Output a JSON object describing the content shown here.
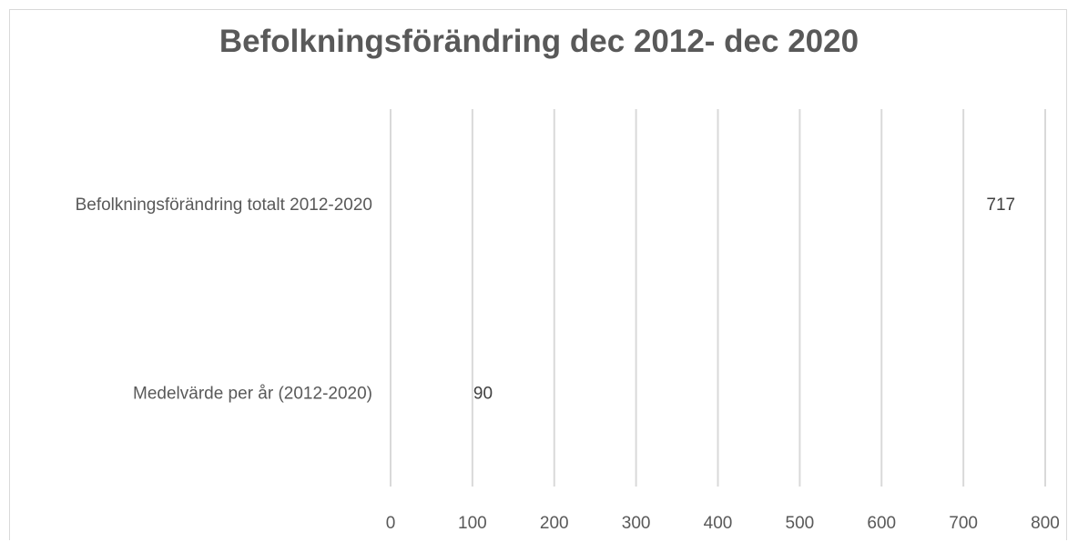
{
  "chart_data": {
    "type": "bar",
    "orientation": "horizontal",
    "title": "Befolkningsförändring dec 2012- dec 2020",
    "categories": [
      "Befolkningsförändring totalt 2012-2020",
      "Medelvärde per år (2012-2020)"
    ],
    "series": [
      {
        "values": [
          717,
          90
        ]
      }
    ],
    "data_labels": [
      "717",
      "90"
    ],
    "xlim": [
      0,
      800
    ],
    "xticks": [
      0,
      100,
      200,
      300,
      400,
      500,
      600,
      700,
      800
    ],
    "grid": true,
    "legend": "none",
    "colors": {
      "title": "#595959",
      "text": "#595959",
      "gridline": "#d9d9d9",
      "frame": "#d9d9d9"
    }
  }
}
